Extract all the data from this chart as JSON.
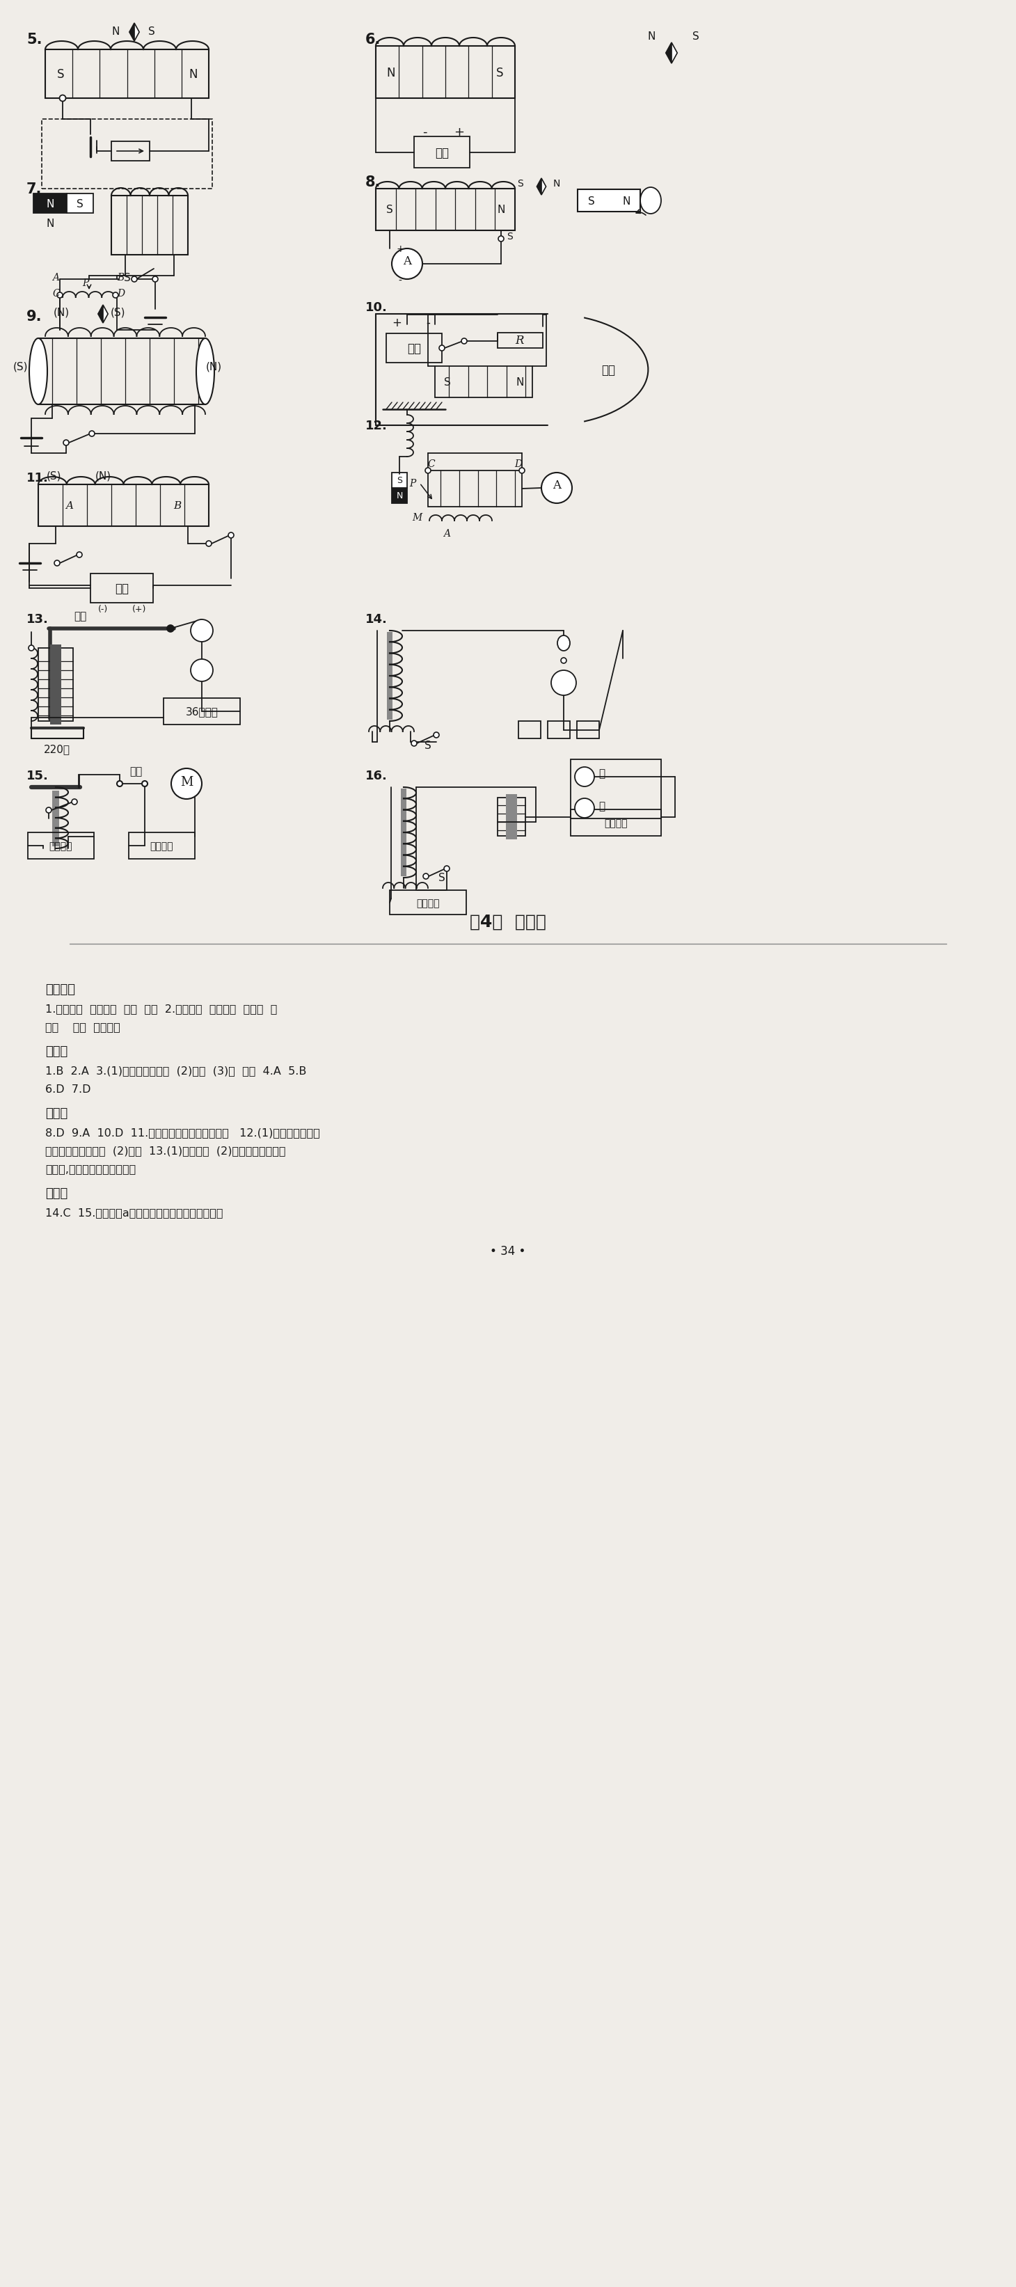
{
  "bg_color": "#f0ede8",
  "title": "第4节  电动机",
  "page_num": "• 34 •",
  "section1_title": "知识管理",
  "section1_line1": "1.电流方向  磁场方向  改变  不变  2.电流方向  磁场方向  不发生  电",
  "section1_line2": "机械    惯性  电流方向",
  "section2_title": "基础题",
  "section2_line1": "1.B  2.A  3.(1)磁场对通电导体  (2)改变  (3)电  机械  4.A  5.B",
  "section2_line2": "6.D  7.D",
  "section3_title": "中档题",
  "section3_line1": "8.D  9.A  10.D  11.磁场对通电导体有力的作用   12.(1)保证导线框中能",
  "section3_line2": "形成持续稳定的电流  (2)机械  13.(1)直线运动  (2)在磁场方向不变的",
  "section3_line3": "情况下,改变导体中电流的方向",
  "section4_title": "拓展题",
  "section4_line1": "14.C  15.通电导线a产生的磁场对它有向左的作用力"
}
